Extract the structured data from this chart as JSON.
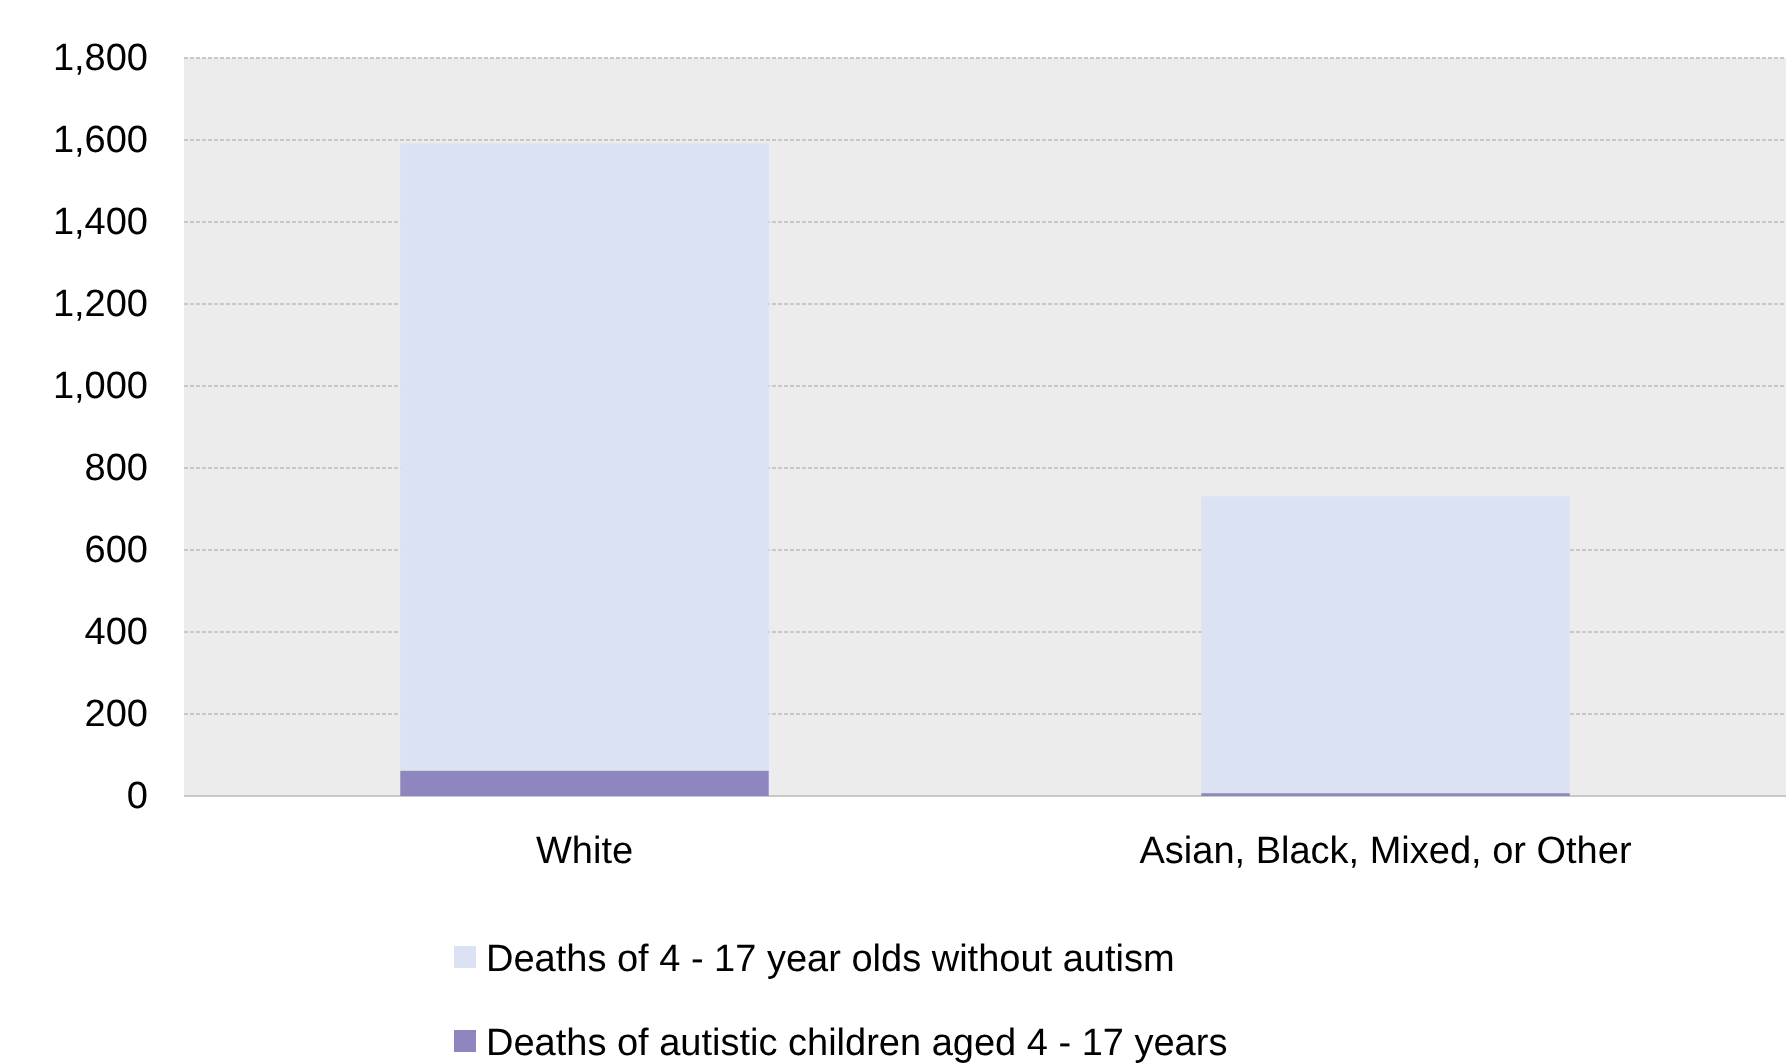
{
  "chart_data": {
    "type": "bar",
    "stacked": true,
    "categories": [
      "White",
      "Asian, Black, Mixed, or Other"
    ],
    "series": [
      {
        "name": "Deaths of autistic children aged 4 - 17 years",
        "color": "#8e86bf",
        "values": [
          62,
          7
        ]
      },
      {
        "name": "Deaths of 4 - 17 year olds without autism",
        "color": "#dae2f3",
        "values": [
          1530,
          724
        ]
      }
    ],
    "ylim": [
      0,
      1800
    ],
    "yticks": [
      {
        "value": 0,
        "label": "0"
      },
      {
        "value": 200,
        "label": "200"
      },
      {
        "value": 400,
        "label": "400"
      },
      {
        "value": 600,
        "label": "600"
      },
      {
        "value": 800,
        "label": "800"
      },
      {
        "value": 1000,
        "label": "1,000"
      },
      {
        "value": 1200,
        "label": "1,200"
      },
      {
        "value": 1400,
        "label": "1,400"
      },
      {
        "value": 1600,
        "label": "1,600"
      },
      {
        "value": 1800,
        "label": "1,800"
      }
    ],
    "grid": "y",
    "legend": "bottom"
  }
}
